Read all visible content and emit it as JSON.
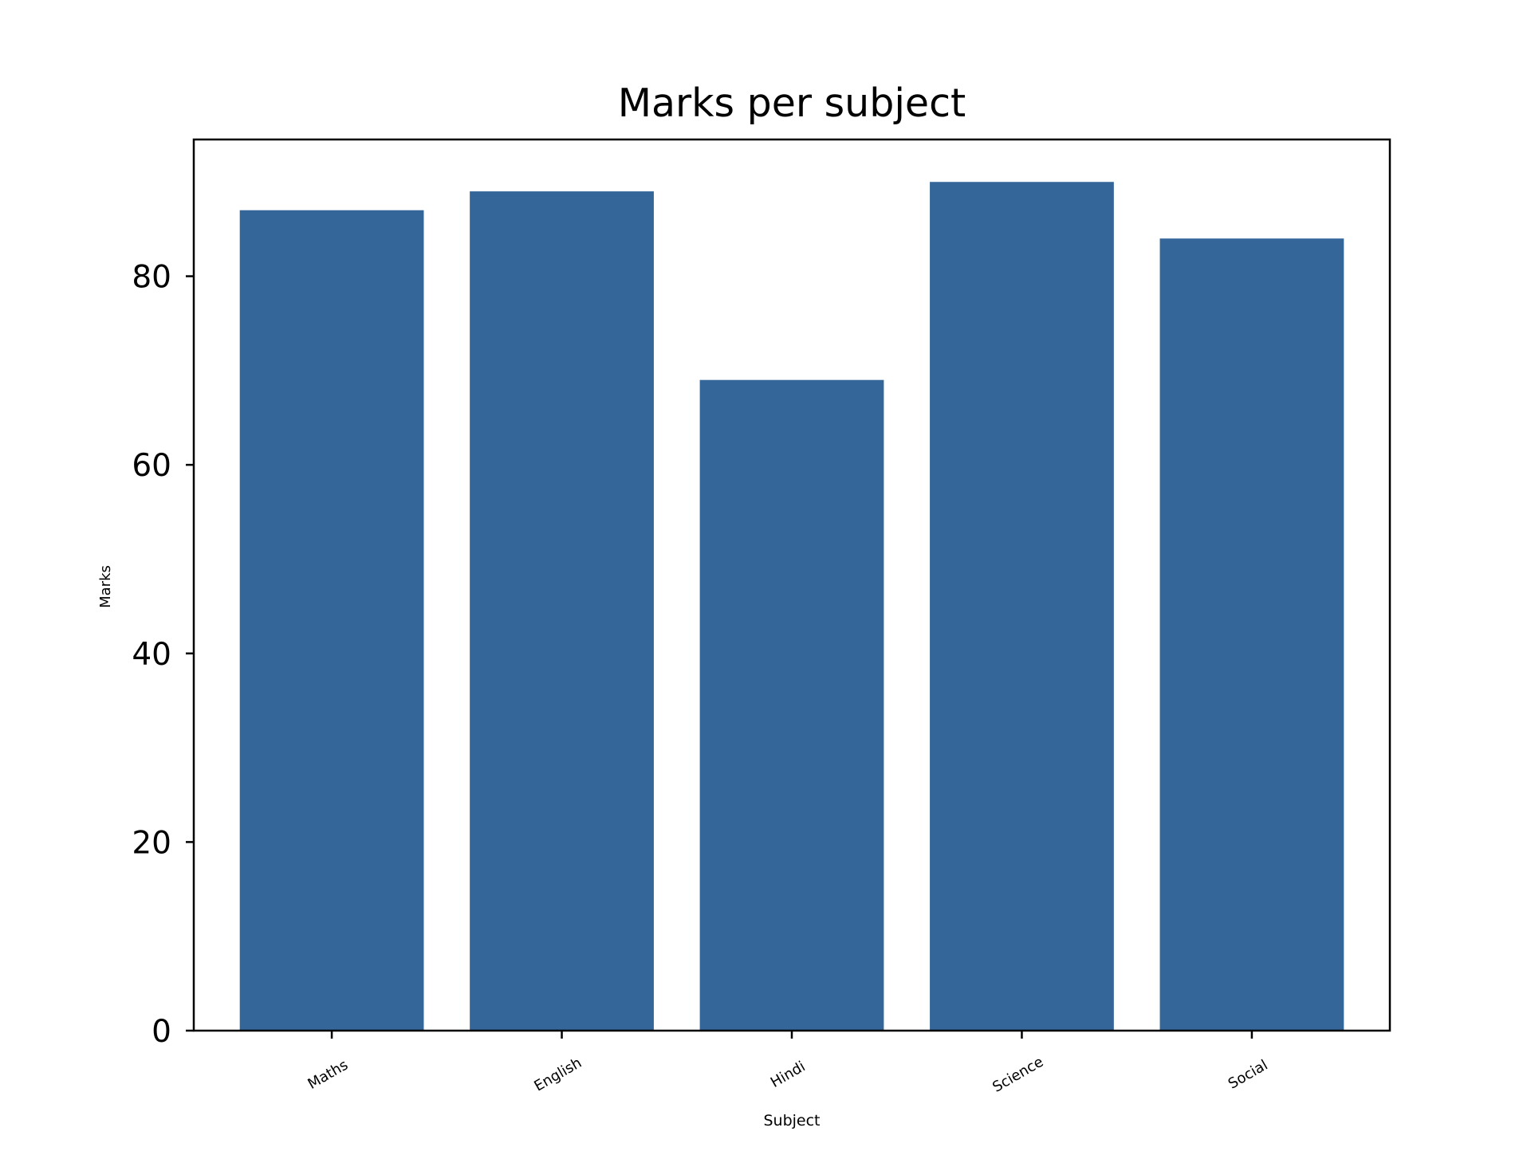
{
  "chart_data": {
    "type": "bar",
    "title": "Marks per subject",
    "xlabel": "Subject",
    "ylabel": "Marks",
    "categories": [
      "Maths",
      "English",
      "Hindi",
      "Science",
      "Social"
    ],
    "values": [
      87,
      89,
      69,
      90,
      84
    ],
    "yticks": [
      "0",
      "20",
      "40",
      "60",
      "80"
    ],
    "ylim": [
      0,
      94.5
    ],
    "grid": false,
    "bar_color": "#346699"
  }
}
